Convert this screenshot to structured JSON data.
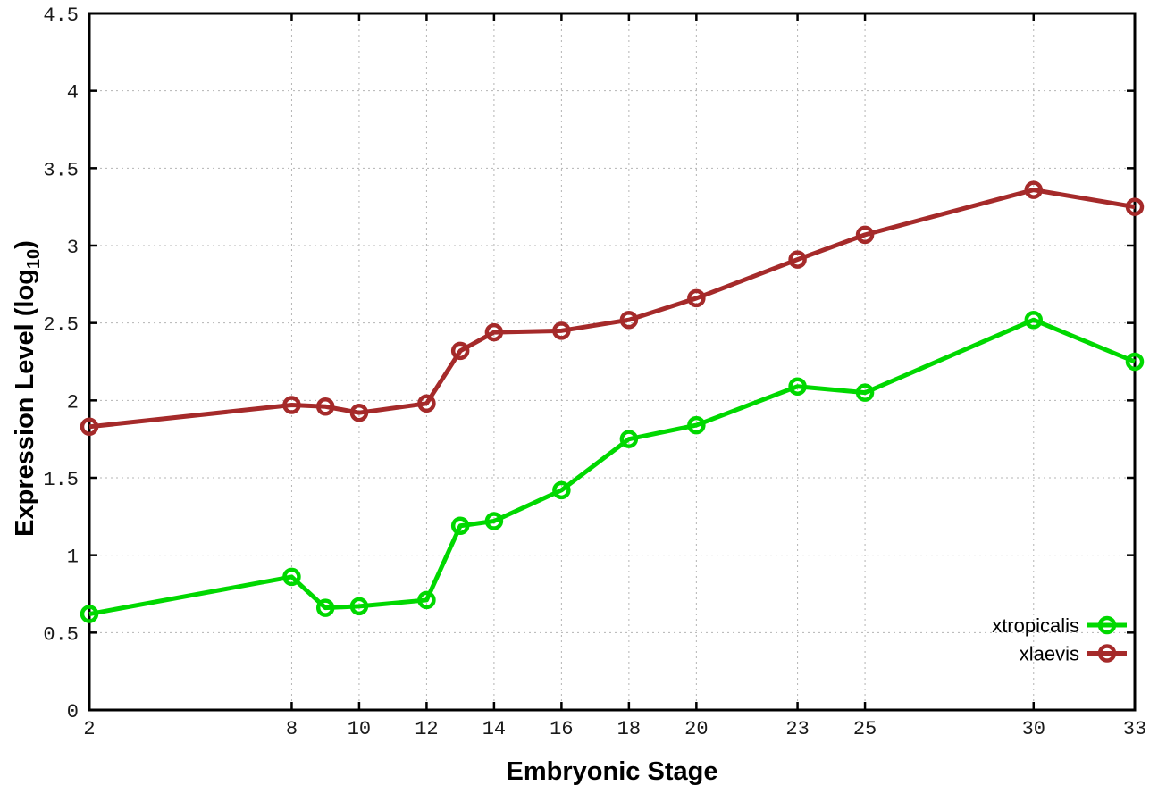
{
  "chart_data": {
    "type": "line",
    "title": "",
    "xlabel": "Embryonic Stage",
    "ylabel_prefix": "Expression Level (log",
    "ylabel_sub": "10",
    "ylabel_suffix": ")",
    "x": [
      2,
      8,
      9,
      10,
      12,
      13,
      14,
      16,
      18,
      20,
      23,
      25,
      30,
      33
    ],
    "series": [
      {
        "name": "xtropicalis",
        "color": "#00d800",
        "values": [
          0.62,
          0.86,
          0.66,
          0.67,
          0.71,
          1.19,
          1.22,
          1.42,
          1.75,
          1.84,
          2.09,
          2.05,
          2.52,
          2.25
        ]
      },
      {
        "name": "xlaevis",
        "color": "#a52a2a",
        "values": [
          1.83,
          1.97,
          1.96,
          1.92,
          1.98,
          2.32,
          2.44,
          2.45,
          2.52,
          2.66,
          2.91,
          3.07,
          3.36,
          3.25
        ]
      }
    ],
    "xlim": [
      2,
      33
    ],
    "ylim": [
      0,
      4.5
    ],
    "x_ticks": [
      2,
      8,
      10,
      12,
      14,
      16,
      18,
      20,
      23,
      25,
      30,
      33
    ],
    "y_ticks": [
      0,
      0.5,
      1,
      1.5,
      2,
      2.5,
      3,
      3.5,
      4,
      4.5
    ],
    "grid": true,
    "grid_style": "dotted",
    "legend_position": "bottom-right",
    "marker": "open-circle",
    "background_color": "#ffffff",
    "axis_color": "#000000",
    "grid_color": "#b4b4b4"
  }
}
